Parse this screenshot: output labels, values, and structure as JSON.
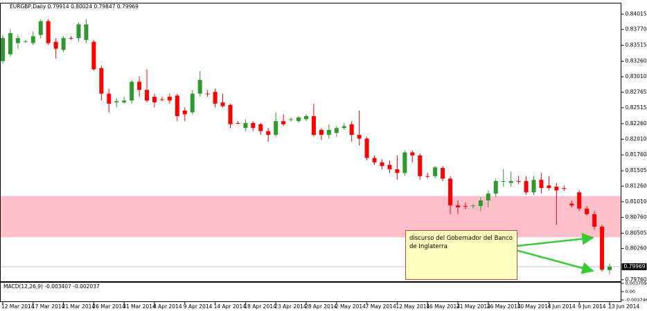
{
  "chart_data": {
    "type": "candlestick",
    "symbol": "EURGBP,Daily",
    "up_color": "#2e9a2e",
    "down_color": "#ff0000",
    "zone_color": "#ffc0cb",
    "categories": [
      "12 Mar 2014",
      null,
      null,
      null,
      "17 Mar 2014",
      null,
      null,
      null,
      "21 Mar 2014",
      null,
      null,
      null,
      "26 Mar 2014",
      null,
      null,
      null,
      "31 Mar 2014",
      null,
      null,
      null,
      "4 Apr 2014",
      null,
      null,
      null,
      "9 Apr 2014",
      null,
      null,
      null,
      "14 Apr 2014",
      null,
      null,
      null,
      "18 Apr 2014",
      null,
      null,
      null,
      "23 Apr 2014",
      null,
      null,
      null,
      "28 Apr 2014",
      null,
      null,
      null,
      "2 May 2014",
      null,
      null,
      null,
      "7 May 2014",
      null,
      null,
      null,
      "12 May 2014",
      null,
      null,
      null,
      "16 May 2014",
      null,
      null,
      null,
      "21 May 2014",
      null,
      null,
      null,
      "26 May 2014",
      null,
      null,
      null,
      "30 May 2014",
      null,
      null,
      null,
      "4 Jun 2014",
      null,
      null,
      null,
      "9 Jun 2014",
      null,
      null,
      null,
      "13 Jun 2014"
    ],
    "open": [
      0.8326,
      0.8337,
      0.8355,
      0.8357,
      0.8355,
      0.8368,
      0.839,
      0.8357,
      0.8344,
      0.8363,
      0.8363,
      0.836,
      0.8357,
      0.8315,
      0.8274,
      0.826,
      0.826,
      0.8263,
      0.8293,
      0.828,
      0.8269,
      0.8265,
      0.8269,
      0.8271,
      0.8247,
      0.8244,
      0.8274,
      0.8274,
      0.8277,
      0.826,
      0.8256,
      0.8227,
      0.8219,
      0.8227,
      0.8225,
      0.8214,
      0.8208,
      0.823,
      0.8232,
      0.823,
      0.8233,
      0.8238,
      0.8216,
      0.8208,
      0.8211,
      0.8219,
      0.8225,
      0.8208,
      0.8202,
      0.8171,
      0.8164,
      0.816,
      0.8153,
      0.8147,
      0.818,
      0.8175,
      0.8142,
      0.8142,
      0.8155,
      0.8138,
      0.8095,
      0.8094,
      0.8094,
      0.8094,
      0.8103,
      0.8114,
      0.8133,
      0.8131,
      0.8134,
      0.8134,
      0.8116,
      0.8136,
      0.8127,
      0.8125,
      0.8123,
      0.8098,
      0.8116,
      0.809,
      0.8081,
      0.8061,
      0.79914
    ],
    "high": [
      0.8368,
      0.8377,
      0.8368,
      0.836,
      0.8374,
      0.8393,
      0.8393,
      0.8363,
      0.8366,
      0.8366,
      0.8388,
      0.8393,
      0.836,
      0.8319,
      0.8282,
      0.8267,
      0.8269,
      0.8296,
      0.8302,
      0.8313,
      0.8274,
      0.8269,
      0.8274,
      0.8274,
      0.8252,
      0.828,
      0.831,
      0.828,
      0.8282,
      0.8274,
      0.8258,
      0.823,
      0.8233,
      0.823,
      0.8227,
      0.8219,
      0.8244,
      0.8241,
      0.8236,
      0.8238,
      0.8241,
      0.8258,
      0.8219,
      0.8225,
      0.8222,
      0.8227,
      0.823,
      0.8247,
      0.8205,
      0.8175,
      0.8169,
      0.8167,
      0.8175,
      0.8183,
      0.8183,
      0.8178,
      0.8147,
      0.8158,
      0.8158,
      0.8142,
      0.8103,
      0.81,
      0.8097,
      0.8108,
      0.8119,
      0.8138,
      0.8153,
      0.8149,
      0.8142,
      0.8142,
      0.8142,
      0.8147,
      0.8142,
      0.8131,
      0.8127,
      0.8103,
      0.8119,
      0.8094,
      0.8086,
      0.8064,
      0.80024
    ],
    "low": [
      0.8322,
      0.8333,
      0.8346,
      0.8355,
      0.8352,
      0.8363,
      0.8352,
      0.833,
      0.8341,
      0.836,
      0.8357,
      0.8355,
      0.8311,
      0.8263,
      0.8244,
      0.8252,
      0.8258,
      0.8258,
      0.8269,
      0.826,
      0.8252,
      0.8262,
      0.8258,
      0.823,
      0.823,
      0.8241,
      0.8269,
      0.8269,
      0.8252,
      0.8252,
      0.8219,
      0.8225,
      0.8214,
      0.8214,
      0.8208,
      0.8197,
      0.8205,
      0.8222,
      0.8229,
      0.8227,
      0.823,
      0.8205,
      0.82,
      0.8202,
      0.8205,
      0.8216,
      0.8197,
      0.8191,
      0.8167,
      0.816,
      0.8153,
      0.8147,
      0.8136,
      0.8142,
      0.8164,
      0.8136,
      0.8138,
      0.8138,
      0.8134,
      0.8081,
      0.8081,
      0.8089,
      0.809,
      0.8086,
      0.8092,
      0.8108,
      0.8125,
      0.8125,
      0.8129,
      0.8112,
      0.8112,
      0.8114,
      0.8119,
      0.8064,
      0.8118,
      0.8092,
      0.8086,
      0.8079,
      0.8056,
      0.7989,
      0.79847
    ],
    "close": [
      0.8363,
      0.8371,
      0.8363,
      0.8358,
      0.8366,
      0.839,
      0.8355,
      0.8346,
      0.8363,
      0.8362,
      0.8385,
      0.8385,
      0.8313,
      0.8274,
      0.8258,
      0.8262,
      0.8263,
      0.8293,
      0.828,
      0.8263,
      0.826,
      0.8264,
      0.8263,
      0.8238,
      0.8241,
      0.8274,
      0.8296,
      0.8273,
      0.8258,
      0.8254,
      0.8225,
      0.8226,
      0.8227,
      0.8219,
      0.8214,
      0.8208,
      0.823,
      0.8225,
      0.8233,
      0.8236,
      0.8238,
      0.8208,
      0.8208,
      0.8216,
      0.8219,
      0.8222,
      0.8208,
      0.8202,
      0.8171,
      0.8164,
      0.8158,
      0.8153,
      0.8147,
      0.818,
      0.8175,
      0.8142,
      0.8141,
      0.8156,
      0.8138,
      0.8095,
      0.8092,
      0.8093,
      0.8095,
      0.8103,
      0.8114,
      0.8134,
      0.8134,
      0.8134,
      0.8133,
      0.8116,
      0.8136,
      0.8123,
      0.8123,
      0.8119,
      0.8122,
      0.8095,
      0.809,
      0.8081,
      0.8061,
      0.7992,
      0.79969
    ],
    "ylim": [
      0.7973,
      0.8419
    ],
    "yticks": [
      0.84015,
      {
        "value": 0.8377,
        "label": "0.83770"
      },
      0.83515,
      {
        "value": 0.8326,
        "label": "0.83260"
      },
      {
        "value": 0.8301,
        "label": "0.83010"
      },
      0.82765,
      0.82515,
      {
        "value": 0.8226,
        "label": "0.82260"
      },
      {
        "value": 0.8201,
        "label": "0.82010"
      },
      {
        "value": 0.8176,
        "label": "0.81760"
      },
      0.81505,
      {
        "value": 0.8126,
        "label": "0.81260"
      },
      {
        "value": 0.8101,
        "label": "0.81010"
      },
      {
        "value": 0.8076,
        "label": "0.80760"
      },
      0.80505,
      {
        "value": 0.8026,
        "label": "0.80260"
      },
      {
        "value": 0.7976,
        "label": "0.79760"
      }
    ],
    "zone": [
      0.8044,
      0.811
    ],
    "annotation": "discurso del Gobernador del Banco de Inglaterra",
    "macd": {
      "title": "MACD(12,26,9)",
      "main": -0.003407,
      "signal": -0.002037,
      "ylim": [
        -0.003746,
        0.003709
      ],
      "yticks": [
        0.003709,
        {
          "value": 0,
          "label": "0.00"
        },
        -0.003746
      ]
    }
  }
}
